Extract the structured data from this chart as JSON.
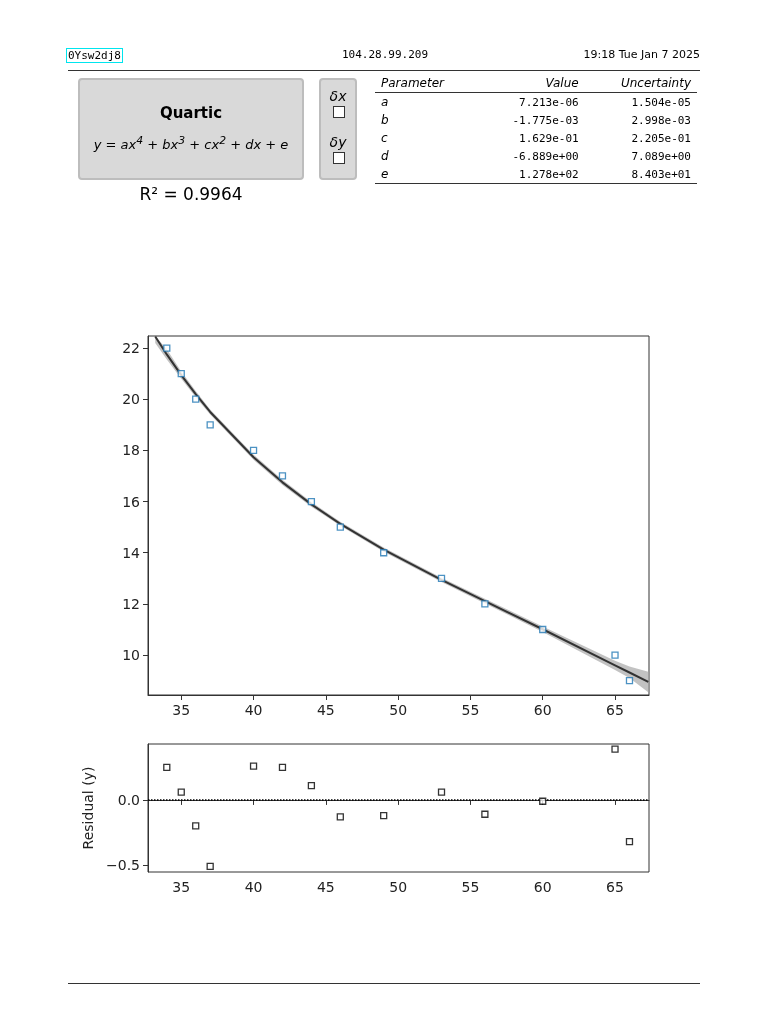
{
  "chart_data": [
    {
      "type": "other",
      "title": "Quartic",
      "subtitle": "y = ax$^{4}$ + bx$^{3}$ + cx$^{2}$ + dx + e",
      "annotations": [
        "0Ysw2dj8",
        "104.28.99.209",
        "19:18 Tue Jan 7 2025",
        "R² = 0.9964",
        "δx",
        "δy",
        "Parameter",
        "Value",
        "Uncertainty",
        "a",
        "7.213e-06",
        "1.504e-05",
        "b",
        "-1.775e-03",
        "2.998e-03",
        "c",
        "1.629e-01",
        "2.205e-01",
        "d",
        "-6.889e+00",
        "7.089e+00",
        "e",
        "1.278e+02",
        "8.403e+01"
      ]
    },
    {
      "type": "scatter",
      "marker": "square",
      "xlim": [
        32.7,
        67.35
      ],
      "ylim": [
        8.44,
        22.47
      ],
      "xticks": [
        35,
        40,
        45,
        50,
        55,
        60,
        65
      ],
      "yticks": [
        10,
        12,
        14,
        16,
        18,
        20,
        22
      ],
      "grid": false,
      "x": [
        34,
        35,
        36,
        37,
        40,
        42,
        44,
        46,
        49,
        53,
        56,
        60,
        65,
        66
      ],
      "series": [
        {
          "color": "#1f77b4",
          "values": [
            22,
            21,
            20,
            19,
            18,
            17,
            16,
            15,
            14,
            13,
            12,
            11,
            10,
            9
          ]
        },
        {
          "type": "line",
          "color": "#333333",
          "marker": "none",
          "x": [
            33.2,
            34,
            35,
            36,
            37,
            40,
            42,
            44,
            46,
            49,
            53,
            56,
            60,
            65,
            66,
            67.3
          ],
          "values": [
            22.45,
            21.75,
            20.94,
            20.2,
            19.5,
            17.73,
            16.75,
            15.89,
            15.13,
            14.12,
            12.94,
            12.11,
            11.01,
            9.6,
            9.32,
            8.95
          ],
          "lower": [
            22.2,
            21.55,
            20.8,
            20.08,
            19.4,
            17.63,
            16.65,
            15.8,
            15.05,
            14.04,
            12.86,
            12.02,
            10.9,
            9.42,
            9.1,
            8.55
          ],
          "upper": [
            22.47,
            21.95,
            21.08,
            20.32,
            19.6,
            17.83,
            16.85,
            15.98,
            15.21,
            14.2,
            13.02,
            12.2,
            11.12,
            9.78,
            9.55,
            9.35
          ]
        }
      ]
    },
    {
      "type": "scatter",
      "marker": "square",
      "ylabel": "Residual (y)",
      "xlim": [
        32.7,
        67.35
      ],
      "ylim": [
        -0.554,
        0.43
      ],
      "xticks": [
        35,
        40,
        45,
        50,
        55,
        60,
        65
      ],
      "yticks": [
        {
          "value": -0.5,
          "label": "−0.5"
        },
        {
          "value": 0,
          "label": "0.0"
        }
      ],
      "grid": false,
      "x": [
        34,
        35,
        36,
        37,
        40,
        42,
        44,
        46,
        49,
        53,
        56,
        60,
        65,
        66
      ],
      "series": [
        {
          "color": "#000000",
          "values": [
            0.25,
            0.06,
            -0.2,
            -0.51,
            0.26,
            0.25,
            0.11,
            -0.13,
            -0.12,
            0.06,
            -0.11,
            -0.01,
            0.39,
            -0.32
          ]
        }
      ],
      "ref_lines": [
        {
          "axis": "y",
          "value": 0,
          "color": "#000000",
          "line_style": "dotted"
        }
      ]
    }
  ]
}
